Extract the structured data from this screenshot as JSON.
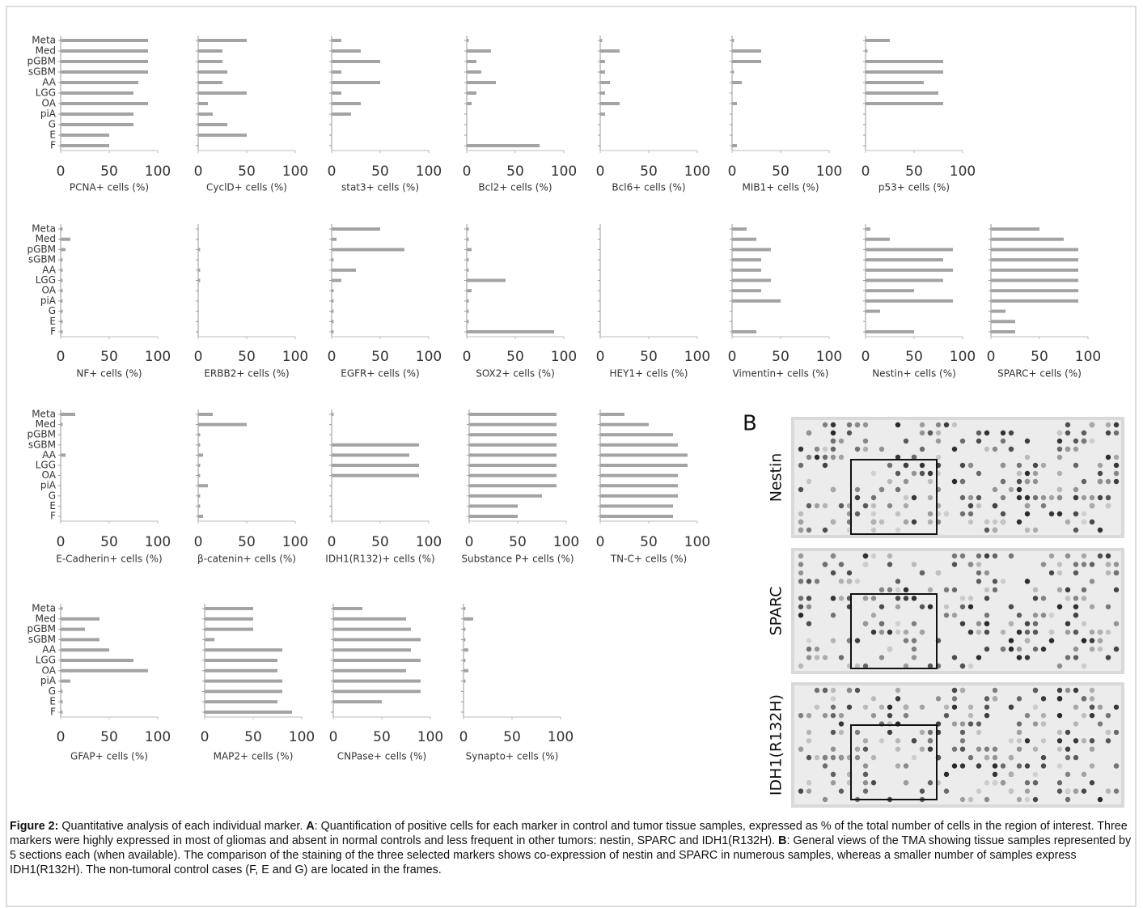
{
  "chart_data": [
    {
      "type": "bar",
      "x_label": "PCNA+ cells (%)",
      "categories": [
        "Meta",
        "Med",
        "pGBM",
        "sGBM",
        "AA",
        "LGG",
        "OA",
        "piA",
        "G",
        "E",
        "F"
      ],
      "show_categories": true,
      "values": [
        90,
        90,
        90,
        90,
        80,
        75,
        90,
        75,
        75,
        50,
        50
      ],
      "color": "#a3a3a3",
      "xlim": [
        0,
        100
      ],
      "xticks": [
        0,
        50,
        100
      ]
    },
    {
      "type": "bar",
      "x_label": "CyclD+ cells (%)",
      "categories": [
        "Meta",
        "Med",
        "pGBM",
        "sGBM",
        "AA",
        "LGG",
        "OA",
        "piA",
        "G",
        "E",
        "F"
      ],
      "show_categories": false,
      "values": [
        50,
        25,
        25,
        30,
        25,
        50,
        10,
        15,
        30,
        50,
        0
      ],
      "color": "#a3a3a3",
      "xlim": [
        0,
        100
      ],
      "xticks": [
        0,
        50,
        100
      ]
    },
    {
      "type": "bar",
      "x_label": "stat3+ cells (%)",
      "categories": [
        "Meta",
        "Med",
        "pGBM",
        "sGBM",
        "AA",
        "LGG",
        "OA",
        "piA",
        "G",
        "E",
        "F"
      ],
      "show_categories": false,
      "values": [
        10,
        30,
        50,
        10,
        50,
        10,
        30,
        20,
        0,
        0,
        0
      ],
      "color": "#a3a3a3",
      "xlim": [
        0,
        100
      ],
      "xticks": [
        0,
        50,
        100
      ]
    },
    {
      "type": "bar",
      "x_label": "Bcl2+ cells (%)",
      "categories": [
        "Meta",
        "Med",
        "pGBM",
        "sGBM",
        "AA",
        "LGG",
        "OA",
        "piA",
        "G",
        "E",
        "F"
      ],
      "show_categories": false,
      "values": [
        2,
        25,
        10,
        15,
        30,
        10,
        5,
        0,
        0,
        0,
        75
      ],
      "color": "#a3a3a3",
      "xlim": [
        0,
        100
      ],
      "xticks": [
        0,
        50,
        100
      ]
    },
    {
      "type": "bar",
      "x_label": "Bcl6+ cells (%)",
      "categories": [
        "Meta",
        "Med",
        "pGBM",
        "sGBM",
        "AA",
        "LGG",
        "OA",
        "piA",
        "G",
        "E",
        "F"
      ],
      "show_categories": false,
      "values": [
        2,
        20,
        5,
        5,
        10,
        5,
        20,
        5,
        0,
        0,
        0
      ],
      "color": "#a3a3a3",
      "xlim": [
        0,
        100
      ],
      "xticks": [
        0,
        50,
        100
      ]
    },
    {
      "type": "bar",
      "x_label": "MIB1+ cells (%)",
      "categories": [
        "Meta",
        "Med",
        "pGBM",
        "sGBM",
        "AA",
        "LGG",
        "OA",
        "piA",
        "G",
        "E",
        "F"
      ],
      "show_categories": false,
      "values": [
        2,
        30,
        30,
        2,
        10,
        0,
        5,
        0,
        0,
        0,
        5
      ],
      "color": "#a3a3a3",
      "xlim": [
        0,
        100
      ],
      "xticks": [
        0,
        50,
        100
      ]
    },
    {
      "type": "bar",
      "x_label": "p53+ cells (%)",
      "categories": [
        "Meta",
        "Med",
        "pGBM",
        "sGBM",
        "AA",
        "LGG",
        "OA",
        "piA",
        "G",
        "E",
        "F"
      ],
      "show_categories": false,
      "values": [
        25,
        2,
        80,
        80,
        60,
        75,
        80,
        0,
        0,
        0,
        0
      ],
      "color": "#a3a3a3",
      "xlim": [
        0,
        100
      ],
      "xticks": [
        0,
        50,
        100
      ]
    },
    {
      "type": "bar",
      "x_label": "NF+ cells (%)",
      "categories": [
        "Meta",
        "Med",
        "pGBM",
        "sGBM",
        "AA",
        "LGG",
        "OA",
        "piA",
        "G",
        "E",
        "F"
      ],
      "show_categories": true,
      "values": [
        2,
        10,
        5,
        2,
        2,
        2,
        2,
        2,
        2,
        2,
        2
      ],
      "color": "#a3a3a3",
      "xlim": [
        0,
        100
      ],
      "xticks": [
        0,
        50,
        100
      ]
    },
    {
      "type": "bar",
      "x_label": "ERBB2+ cells (%)",
      "categories": [
        "Meta",
        "Med",
        "pGBM",
        "sGBM",
        "AA",
        "LGG",
        "OA",
        "piA",
        "G",
        "E",
        "F"
      ],
      "show_categories": false,
      "values": [
        0,
        0,
        2,
        0,
        2,
        2,
        0,
        0,
        0,
        0,
        0
      ],
      "color": "#a3a3a3",
      "xlim": [
        0,
        100
      ],
      "xticks": [
        0,
        50,
        100
      ]
    },
    {
      "type": "bar",
      "x_label": "EGFR+ cells (%)",
      "categories": [
        "Meta",
        "Med",
        "pGBM",
        "sGBM",
        "AA",
        "LGG",
        "OA",
        "piA",
        "G",
        "E",
        "F"
      ],
      "show_categories": false,
      "values": [
        50,
        5,
        75,
        2,
        25,
        10,
        2,
        2,
        2,
        2,
        2
      ],
      "color": "#a3a3a3",
      "xlim": [
        0,
        100
      ],
      "xticks": [
        0,
        50,
        100
      ]
    },
    {
      "type": "bar",
      "x_label": "SOX2+ cells (%)",
      "categories": [
        "Meta",
        "Med",
        "pGBM",
        "sGBM",
        "AA",
        "LGG",
        "OA",
        "piA",
        "G",
        "E",
        "F"
      ],
      "show_categories": false,
      "values": [
        2,
        2,
        5,
        2,
        2,
        40,
        5,
        2,
        2,
        2,
        90
      ],
      "color": "#a3a3a3",
      "xlim": [
        0,
        100
      ],
      "xticks": [
        0,
        50,
        100
      ]
    },
    {
      "type": "bar",
      "x_label": "HEY1+ cells (%)",
      "categories": [
        "Meta",
        "Med",
        "pGBM",
        "sGBM",
        "AA",
        "LGG",
        "OA",
        "piA",
        "G",
        "E",
        "F"
      ],
      "show_categories": false,
      "values": [
        0,
        0,
        0,
        0,
        0,
        0,
        0,
        0,
        0,
        0,
        0
      ],
      "color": "#a3a3a3",
      "xlim": [
        0,
        100
      ],
      "xticks": [
        0,
        50,
        100
      ]
    },
    {
      "type": "bar",
      "x_label": "Vimentin+ cells (%)",
      "categories": [
        "Meta",
        "Med",
        "pGBM",
        "sGBM",
        "AA",
        "LGG",
        "OA",
        "piA",
        "G",
        "E",
        "F"
      ],
      "show_categories": false,
      "values": [
        15,
        25,
        40,
        30,
        30,
        40,
        30,
        50,
        0,
        0,
        25
      ],
      "color": "#a3a3a3",
      "xlim": [
        0,
        100
      ],
      "xticks": [
        0,
        50,
        100
      ]
    },
    {
      "type": "bar",
      "x_label": "Nestin+ cells (%)",
      "categories": [
        "Meta",
        "Med",
        "pGBM",
        "sGBM",
        "AA",
        "LGG",
        "OA",
        "piA",
        "G",
        "E",
        "F"
      ],
      "show_categories": false,
      "values": [
        5,
        25,
        90,
        80,
        90,
        80,
        50,
        90,
        15,
        0,
        50
      ],
      "color": "#a3a3a3",
      "xlim": [
        0,
        100
      ],
      "xticks": [
        0,
        50,
        100
      ]
    },
    {
      "type": "bar",
      "x_label": "SPARC+ cells (%)",
      "categories": [
        "Meta",
        "Med",
        "pGBM",
        "sGBM",
        "AA",
        "LGG",
        "OA",
        "piA",
        "G",
        "E",
        "F"
      ],
      "show_categories": false,
      "values": [
        50,
        75,
        90,
        90,
        90,
        90,
        90,
        90,
        15,
        25,
        25
      ],
      "color": "#a3a3a3",
      "xlim": [
        0,
        100
      ],
      "xticks": [
        0,
        50,
        100
      ]
    },
    {
      "type": "bar",
      "x_label": "E-Cadherin+ cells (%)",
      "categories": [
        "Meta",
        "Med",
        "pGBM",
        "sGBM",
        "AA",
        "LGG",
        "OA",
        "piA",
        "G",
        "E",
        "F"
      ],
      "show_categories": true,
      "values": [
        15,
        2,
        0,
        0,
        5,
        0,
        0,
        0,
        0,
        0,
        0
      ],
      "color": "#a3a3a3",
      "xlim": [
        0,
        100
      ],
      "xticks": [
        0,
        50,
        100
      ]
    },
    {
      "type": "bar",
      "x_label": "β-catenin+ cells (%)",
      "categories": [
        "Meta",
        "Med",
        "pGBM",
        "sGBM",
        "AA",
        "LGG",
        "OA",
        "piA",
        "G",
        "E",
        "F"
      ],
      "show_categories": false,
      "values": [
        15,
        50,
        2,
        2,
        5,
        2,
        2,
        10,
        2,
        2,
        5
      ],
      "color": "#a3a3a3",
      "xlim": [
        0,
        100
      ],
      "xticks": [
        0,
        50,
        100
      ]
    },
    {
      "type": "bar",
      "x_label": "IDH1(R132)+ cells (%)",
      "categories": [
        "Meta",
        "Med",
        "pGBM",
        "sGBM",
        "AA",
        "LGG",
        "OA",
        "piA",
        "G",
        "E",
        "F"
      ],
      "show_categories": false,
      "values": [
        2,
        0,
        0,
        90,
        80,
        90,
        90,
        0,
        0,
        0,
        0
      ],
      "color": "#a3a3a3",
      "xlim": [
        0,
        100
      ],
      "xticks": [
        0,
        50,
        100
      ]
    },
    {
      "type": "bar",
      "x_label": "Substance P+ cells (%)",
      "categories": [
        "Meta",
        "Med",
        "pGBM",
        "sGBM",
        "AA",
        "LGG",
        "OA",
        "piA",
        "G",
        "E",
        "F"
      ],
      "show_categories": false,
      "values": [
        90,
        90,
        90,
        90,
        90,
        90,
        90,
        90,
        75,
        50,
        50
      ],
      "color": "#a3a3a3",
      "xlim": [
        0,
        100
      ],
      "xticks": [
        0,
        50,
        100
      ]
    },
    {
      "type": "bar",
      "x_label": "TN-C+ cells (%)",
      "categories": [
        "Meta",
        "Med",
        "pGBM",
        "sGBM",
        "AA",
        "LGG",
        "OA",
        "piA",
        "G",
        "E",
        "F"
      ],
      "show_categories": false,
      "values": [
        25,
        50,
        75,
        80,
        90,
        90,
        80,
        80,
        80,
        75,
        75
      ],
      "color": "#a3a3a3",
      "xlim": [
        0,
        100
      ],
      "xticks": [
        0,
        50,
        100
      ]
    },
    {
      "type": "bar",
      "x_label": "GFAP+ cells (%)",
      "categories": [
        "Meta",
        "Med",
        "pGBM",
        "sGBM",
        "AA",
        "LGG",
        "OA",
        "piA",
        "G",
        "E",
        "F"
      ],
      "show_categories": true,
      "values": [
        2,
        40,
        25,
        40,
        50,
        75,
        90,
        10,
        2,
        2,
        2
      ],
      "color": "#a3a3a3",
      "xlim": [
        0,
        100
      ],
      "xticks": [
        0,
        50,
        100
      ]
    },
    {
      "type": "bar",
      "x_label": "MAP2+ cells (%)",
      "categories": [
        "Meta",
        "Med",
        "pGBM",
        "sGBM",
        "AA",
        "LGG",
        "OA",
        "piA",
        "G",
        "E",
        "F"
      ],
      "show_categories": false,
      "values": [
        50,
        50,
        50,
        10,
        80,
        75,
        75,
        80,
        80,
        75,
        90
      ],
      "color": "#a3a3a3",
      "xlim": [
        0,
        100
      ],
      "xticks": [
        0,
        50,
        100
      ]
    },
    {
      "type": "bar",
      "x_label": "CNPase+ cells (%)",
      "categories": [
        "Meta",
        "Med",
        "pGBM",
        "sGBM",
        "AA",
        "LGG",
        "OA",
        "piA",
        "G",
        "E",
        "F"
      ],
      "show_categories": false,
      "values": [
        30,
        75,
        80,
        90,
        80,
        90,
        75,
        90,
        90,
        50,
        0
      ],
      "color": "#a3a3a3",
      "xlim": [
        0,
        100
      ],
      "xticks": [
        0,
        50,
        100
      ]
    },
    {
      "type": "bar",
      "x_label": "Synapto+ cells (%)",
      "categories": [
        "Meta",
        "Med",
        "pGBM",
        "sGBM",
        "AA",
        "LGG",
        "OA",
        "piA",
        "G",
        "E",
        "F"
      ],
      "show_categories": false,
      "values": [
        2,
        10,
        2,
        2,
        5,
        2,
        5,
        2,
        0,
        0,
        0
      ],
      "color": "#a3a3a3",
      "xlim": [
        0,
        100
      ],
      "xticks": [
        0,
        50,
        100
      ]
    }
  ],
  "panel_b": {
    "label": "B",
    "images": [
      {
        "label": "Nestin"
      },
      {
        "label": "SPARC"
      },
      {
        "label": "IDH1(R132H)"
      }
    ]
  },
  "caption": [
    {
      "text": "Figure 2:",
      "bold": true
    },
    {
      "text": " Quantitative analysis of each individual marker. ",
      "bold": false
    },
    {
      "text": "A",
      "bold": true
    },
    {
      "text": ": Quantification of positive cells for each marker in control and tumor tissue samples, expressed as % of the total number of cells in the region of interest. Three markers were highly expressed in most of gliomas and absent in normal controls and less frequent in other tumors: nestin, SPARC and IDH1(R132H). ",
      "bold": false
    },
    {
      "text": "B",
      "bold": true
    },
    {
      "text": ": General views of the TMA showing tissue samples represented by 5 sections each (when available). The comparison of the staining of the three selected markers shows co-expression of nestin and SPARC in numerous samples, whereas a smaller number of samples express IDH1(R132H). The non-tumoral control cases (F, E and G) are located in the frames.",
      "bold": false
    }
  ]
}
